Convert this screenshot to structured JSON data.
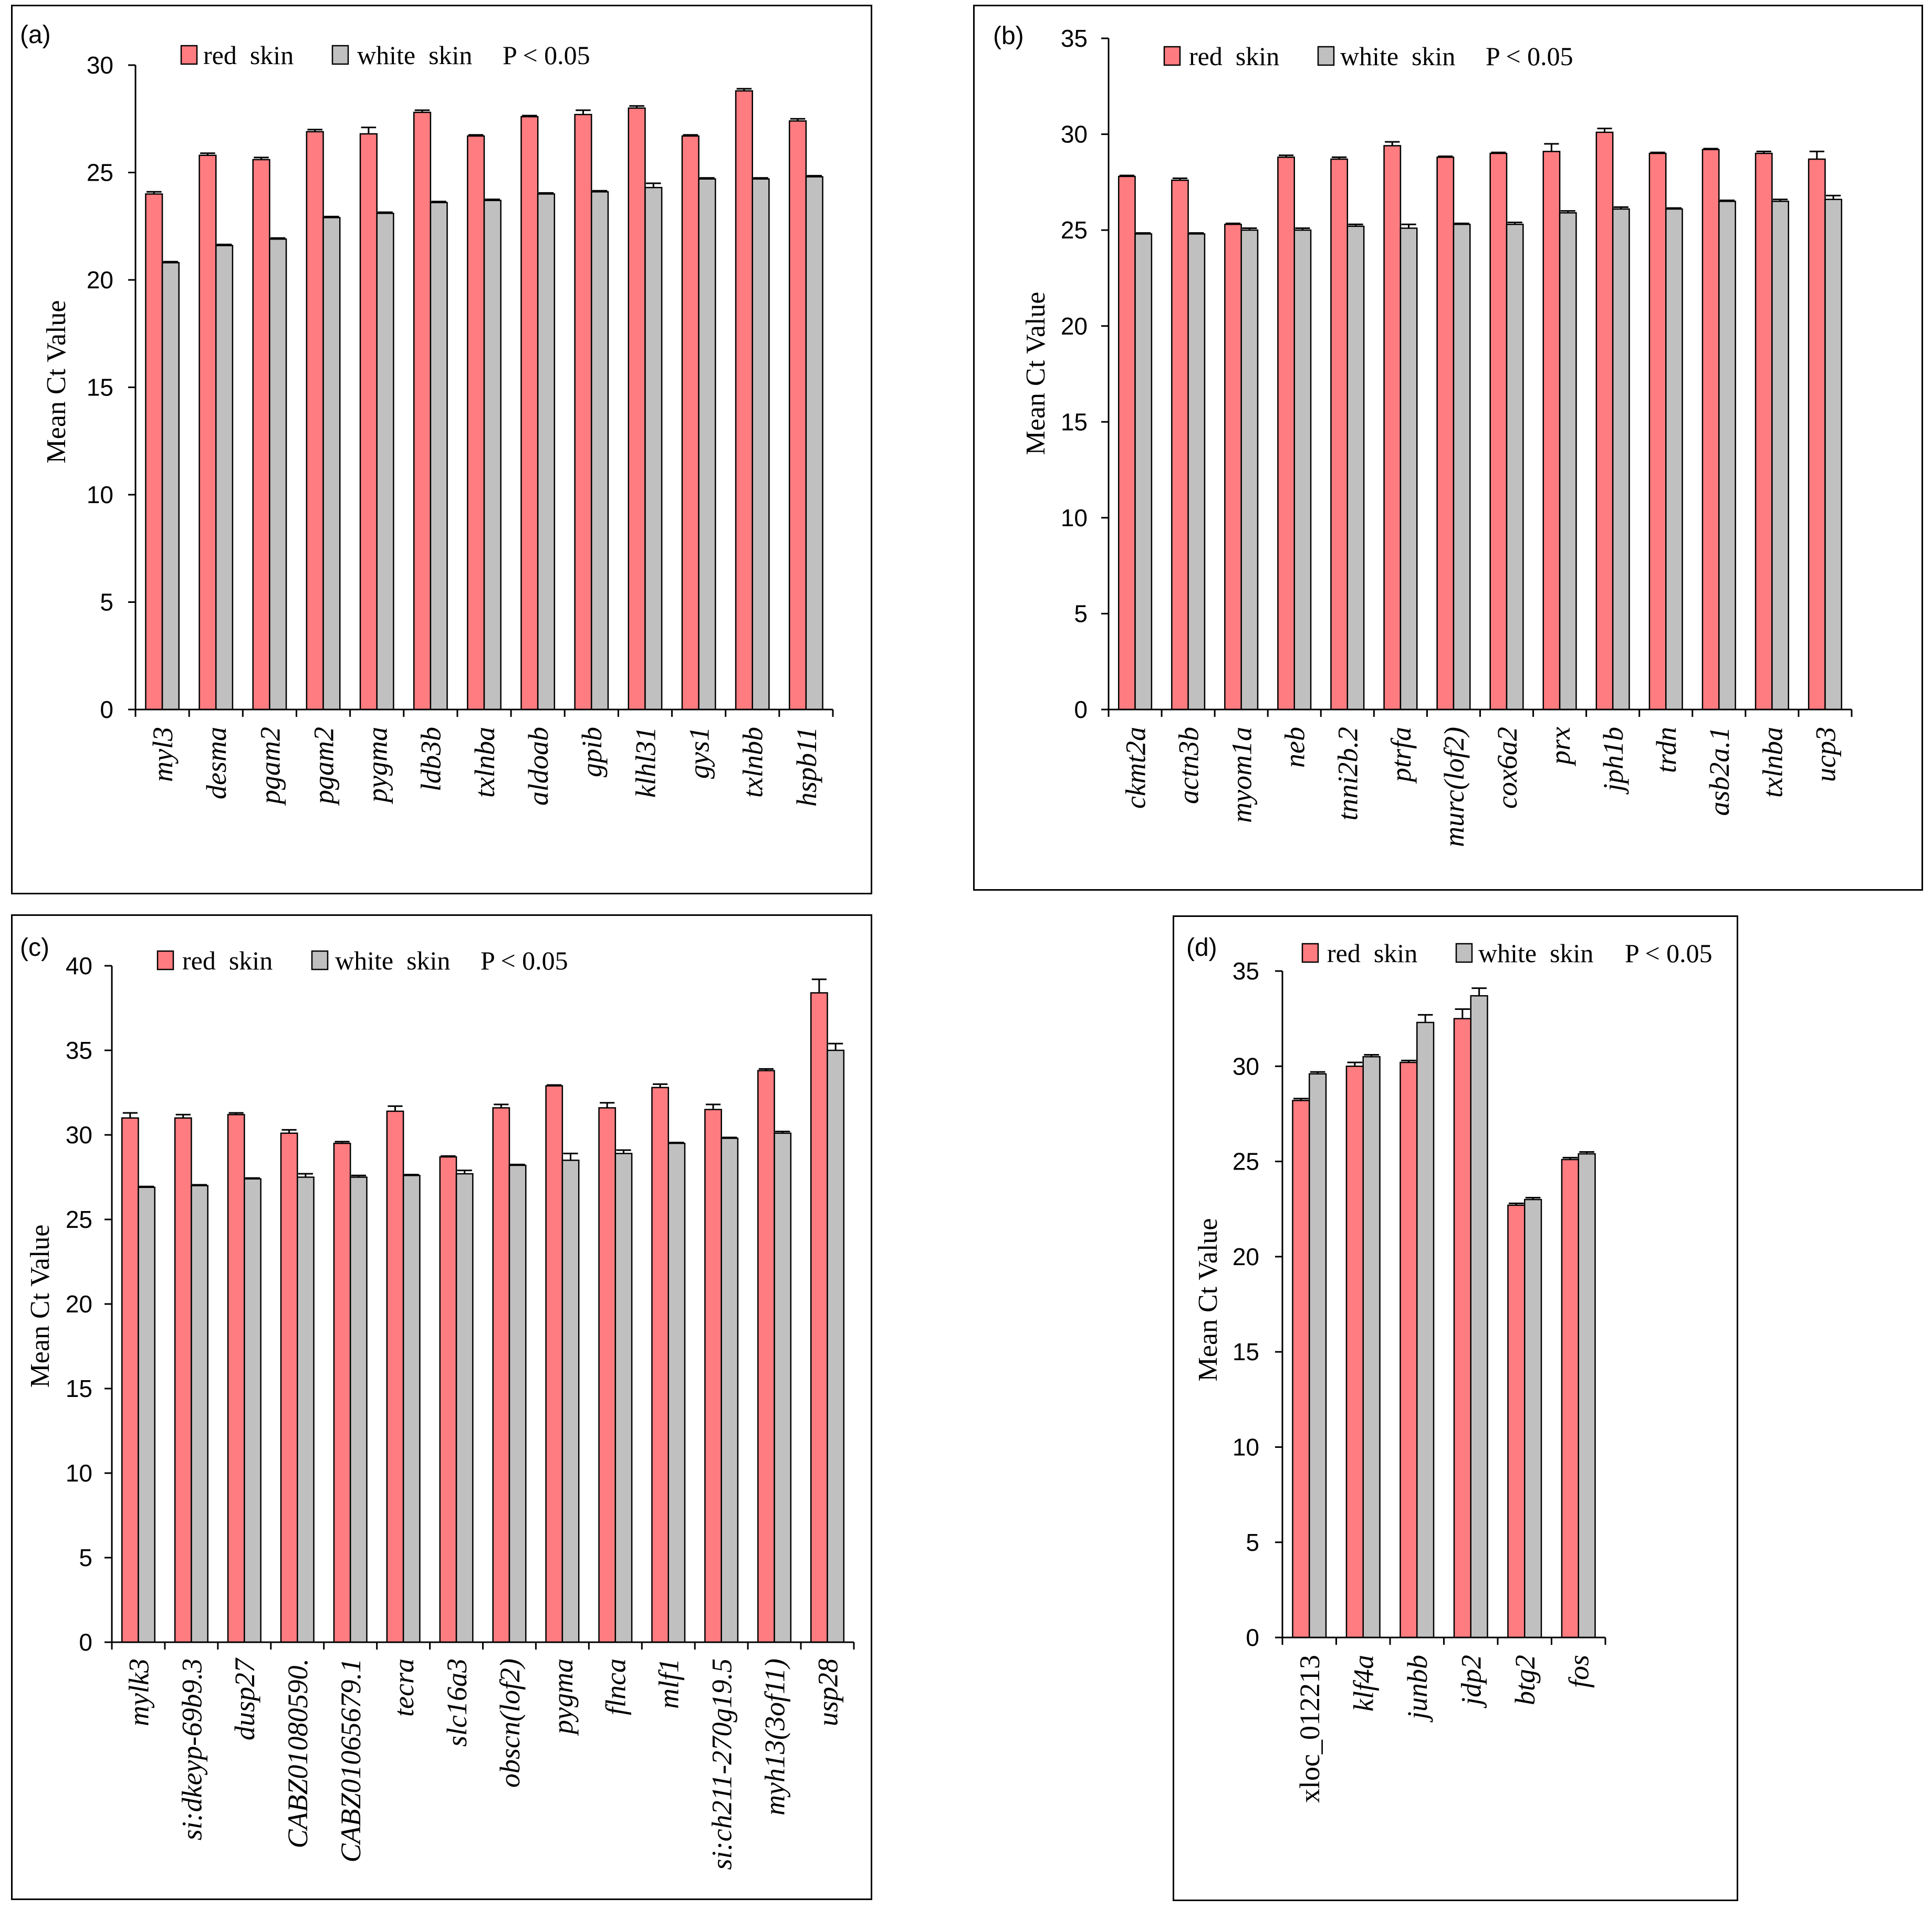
{
  "chart_data": [
    {
      "panel_label": "(a)",
      "type": "bar",
      "ylabel": "Mean Ct Value",
      "ylim": [
        0,
        30
      ],
      "yticks": [
        0,
        5,
        10,
        15,
        20,
        25,
        30
      ],
      "legend_placement": "top",
      "significance": "P < 0.05",
      "categories": [
        "myl3",
        "desma",
        "pgam2",
        "pgam2",
        "pygma",
        "ldb3b",
        "txlnba",
        "aldoab",
        "gpib",
        "klhl31",
        "gys1",
        "txlnbb",
        "hspb11"
      ],
      "series": [
        {
          "name": "red  skin",
          "color": "#FF7C80",
          "values": [
            24.0,
            25.8,
            25.6,
            26.9,
            26.8,
            27.8,
            26.7,
            27.6,
            27.7,
            28.0,
            26.7,
            28.8,
            27.4
          ],
          "errors": [
            0.1,
            0.1,
            0.1,
            0.1,
            0.3,
            0.1,
            0.05,
            0.05,
            0.2,
            0.1,
            0.05,
            0.1,
            0.1
          ]
        },
        {
          "name": "white  skin",
          "color": "#C0C0C0",
          "values": [
            20.8,
            21.6,
            21.9,
            22.9,
            23.1,
            23.6,
            23.7,
            24.0,
            24.1,
            24.3,
            24.7,
            24.7,
            24.8
          ],
          "errors": [
            0.05,
            0.05,
            0.05,
            0.05,
            0.05,
            0.05,
            0.05,
            0.05,
            0.05,
            0.2,
            0.05,
            0.05,
            0.05
          ]
        }
      ]
    },
    {
      "panel_label": "(b)",
      "type": "bar",
      "ylabel": "Mean Ct Value",
      "ylim": [
        0,
        35
      ],
      "yticks": [
        0,
        5,
        10,
        15,
        20,
        25,
        30,
        35
      ],
      "legend_placement": "top",
      "significance": "P < 0.05",
      "categories": [
        "ckmt2a",
        "actn3b",
        "myom1a",
        "neb",
        "tnni2b.2",
        "ptrfa",
        "murc(lof2)",
        "cox6a2",
        "prx",
        "jph1b",
        "trdn",
        "asb2a.1",
        "txlnba",
        "ucp3"
      ],
      "series": [
        {
          "name": "red  skin",
          "color": "#FF7C80",
          "values": [
            27.8,
            27.6,
            25.3,
            28.8,
            28.7,
            29.4,
            28.8,
            29.0,
            29.1,
            30.1,
            29.0,
            29.2,
            29.0,
            28.7
          ],
          "errors": [
            0.05,
            0.1,
            0.05,
            0.1,
            0.1,
            0.2,
            0.05,
            0.05,
            0.4,
            0.2,
            0.05,
            0.05,
            0.1,
            0.4
          ]
        },
        {
          "name": "white  skin",
          "color": "#C0C0C0",
          "values": [
            24.8,
            24.8,
            25.0,
            25.0,
            25.2,
            25.1,
            25.3,
            25.3,
            25.9,
            26.1,
            26.1,
            26.5,
            26.5,
            26.6
          ],
          "errors": [
            0.05,
            0.05,
            0.1,
            0.1,
            0.1,
            0.2,
            0.05,
            0.1,
            0.1,
            0.1,
            0.05,
            0.05,
            0.1,
            0.2
          ]
        }
      ]
    },
    {
      "panel_label": "(c)",
      "type": "bar",
      "ylabel": "Mean Ct Value",
      "ylim": [
        0,
        40
      ],
      "yticks": [
        0,
        5,
        10,
        15,
        20,
        25,
        30,
        35,
        40
      ],
      "legend_placement": "top",
      "significance": "P < 0.05",
      "categories": [
        "mylk3",
        "si:dkeyp-69b9.3",
        "dusp27",
        "CABZ01080590.",
        "CABZ01065679.1",
        "tecra",
        "slc16a3",
        "obscn(lof2)",
        "pygma",
        "flnca",
        "mlf1",
        "si:ch211-270g19.5",
        "myh13(3of11)",
        "usp28"
      ],
      "series": [
        {
          "name": "red  skin",
          "color": "#FF7C80",
          "values": [
            31.0,
            31.0,
            31.2,
            30.1,
            29.5,
            31.4,
            28.7,
            31.6,
            32.9,
            31.6,
            32.8,
            31.5,
            33.8,
            38.4
          ],
          "errors": [
            0.3,
            0.2,
            0.1,
            0.2,
            0.1,
            0.3,
            0.05,
            0.2,
            0.05,
            0.3,
            0.2,
            0.3,
            0.1,
            0.8
          ]
        },
        {
          "name": "white  skin",
          "color": "#C0C0C0",
          "values": [
            26.9,
            27.0,
            27.4,
            27.5,
            27.5,
            27.6,
            27.7,
            28.2,
            28.5,
            28.9,
            29.5,
            29.8,
            30.1,
            35.0
          ],
          "errors": [
            0.05,
            0.05,
            0.05,
            0.2,
            0.1,
            0.05,
            0.2,
            0.05,
            0.4,
            0.2,
            0.05,
            0.05,
            0.1,
            0.4
          ]
        }
      ]
    },
    {
      "panel_label": "(d)",
      "type": "bar",
      "ylabel": "Mean Ct Value",
      "ylim": [
        0,
        35
      ],
      "yticks": [
        0,
        5,
        10,
        15,
        20,
        25,
        30,
        35
      ],
      "legend_placement": "top",
      "significance": "P < 0.05",
      "categories": [
        "xloc_012213",
        "klf4a",
        "junbb",
        "jdp2",
        "btg2",
        "fos"
      ],
      "series": [
        {
          "name": "red  skin",
          "color": "#FF7C80",
          "values": [
            28.2,
            30.0,
            30.2,
            32.5,
            22.7,
            25.1
          ],
          "errors": [
            0.1,
            0.2,
            0.1,
            0.5,
            0.1,
            0.1
          ]
        },
        {
          "name": "white  skin",
          "color": "#C0C0C0",
          "values": [
            29.6,
            30.5,
            32.3,
            33.7,
            23.0,
            25.4
          ],
          "errors": [
            0.1,
            0.1,
            0.4,
            0.4,
            0.1,
            0.1
          ]
        }
      ]
    }
  ]
}
